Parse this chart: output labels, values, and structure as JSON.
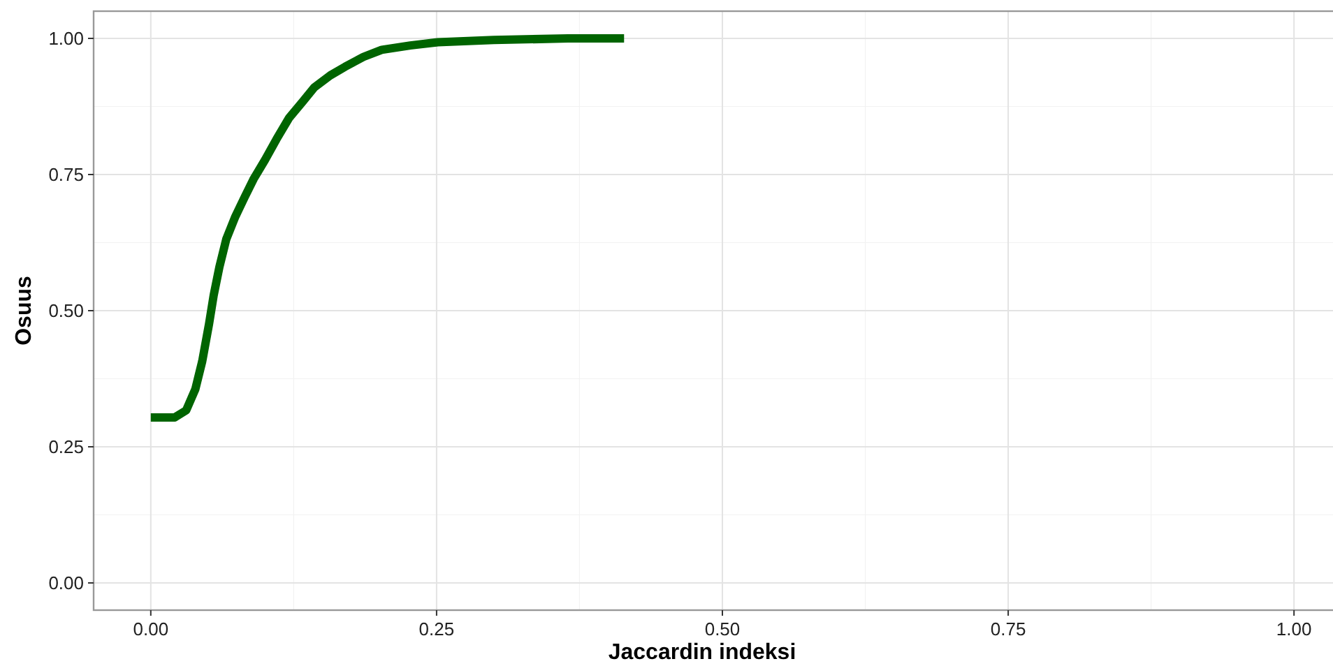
{
  "chart_data": {
    "type": "line",
    "xlabel": "Jaccardin indeksi",
    "ylabel": "Osuus",
    "x": [
      0.0,
      0.021,
      0.031,
      0.039,
      0.045,
      0.051,
      0.055,
      0.06,
      0.066,
      0.074,
      0.082,
      0.09,
      0.1,
      0.11,
      0.121,
      0.133,
      0.143,
      0.157,
      0.17,
      0.186,
      0.202,
      0.227,
      0.251,
      0.3,
      0.365,
      0.414
    ],
    "series": [
      {
        "color": "#006400",
        "values": [
          0.304,
          0.304,
          0.317,
          0.356,
          0.407,
          0.476,
          0.528,
          0.58,
          0.631,
          0.673,
          0.708,
          0.742,
          0.777,
          0.815,
          0.854,
          0.884,
          0.91,
          0.932,
          0.948,
          0.966,
          0.979,
          0.987,
          0.993,
          0.997,
          1.0,
          1.0
        ]
      }
    ],
    "xlim": [
      -0.05,
      1.05
    ],
    "ylim": [
      -0.05,
      1.05
    ],
    "xticks": [
      {
        "value": 0,
        "label": "0.00"
      },
      {
        "value": 0.25,
        "label": "0.25"
      },
      {
        "value": 0.5,
        "label": "0.50"
      },
      {
        "value": 0.75,
        "label": "0.75"
      },
      {
        "value": 1,
        "label": "1.00"
      }
    ],
    "yticks": [
      {
        "value": 0,
        "label": "0.00"
      },
      {
        "value": 0.25,
        "label": "0.25"
      },
      {
        "value": 0.5,
        "label": "0.50"
      },
      {
        "value": 0.75,
        "label": "0.75"
      },
      {
        "value": 1,
        "label": "1.00"
      }
    ],
    "grid": true,
    "line_style": "solid",
    "marker": "none"
  }
}
